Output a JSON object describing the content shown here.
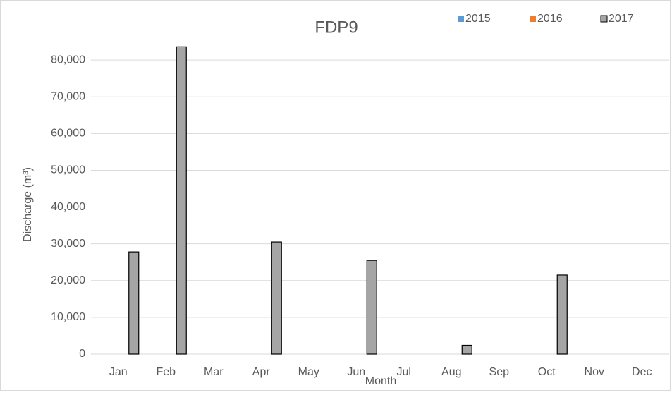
{
  "chart_data": {
    "type": "bar",
    "title": "FDP9",
    "x_label": "Month",
    "y_label": "Discharge (m³)",
    "categories": [
      "Jan",
      "Feb",
      "Mar",
      "Apr",
      "May",
      "Jun",
      "Jul",
      "Aug",
      "Sep",
      "Oct",
      "Nov",
      "Dec"
    ],
    "series": [
      {
        "name": "2015",
        "color": "#5b9bd5",
        "values": [
          0,
          0,
          0,
          0,
          0,
          0,
          0,
          0,
          0,
          0,
          0,
          0
        ]
      },
      {
        "name": "2016",
        "color": "#ed7d31",
        "values": [
          0,
          0,
          0,
          0,
          0,
          0,
          0,
          0,
          0,
          0,
          0,
          0
        ]
      },
      {
        "name": "2017",
        "color": "#a5a5a5",
        "values": [
          27800,
          83600,
          0,
          30500,
          0,
          25500,
          0,
          2400,
          0,
          21500,
          0,
          0
        ]
      }
    ],
    "ylim": [
      0,
      90000
    ],
    "yticks": [
      0,
      {
        "value": 10000,
        "label": "10,000"
      },
      {
        "value": 20000,
        "label": "20,000"
      },
      {
        "value": 30000,
        "label": "30,000"
      },
      {
        "value": 40000,
        "label": "40,000"
      },
      {
        "value": 50000,
        "label": "50,000"
      },
      {
        "value": 60000,
        "label": "60,000"
      },
      {
        "value": 70000,
        "label": "70,000"
      },
      {
        "value": 80000,
        "label": "80,000"
      }
    ],
    "grid": true,
    "legend": "top-right"
  }
}
